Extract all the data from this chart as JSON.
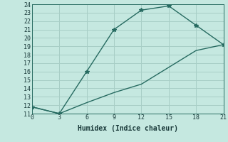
{
  "xlabel": "Humidex (Indice chaleur)",
  "ylabel": "",
  "line1_x": [
    0,
    3,
    6,
    9,
    12,
    15,
    18,
    21
  ],
  "line1_y": [
    11.8,
    11.0,
    16.0,
    21.0,
    23.3,
    23.8,
    21.5,
    19.2
  ],
  "line2_x": [
    0,
    3,
    6,
    9,
    12,
    15,
    18,
    21
  ],
  "line2_y": [
    11.8,
    11.0,
    12.3,
    13.5,
    14.5,
    16.5,
    18.5,
    19.2
  ],
  "line_color": "#276b61",
  "bg_color": "#c5e8e0",
  "plot_bg_color": "#c5e8e0",
  "grid_color": "#a8cec6",
  "xlim": [
    0,
    21
  ],
  "ylim": [
    11,
    24
  ],
  "xticks": [
    0,
    3,
    6,
    9,
    12,
    15,
    18,
    21
  ],
  "yticks": [
    11,
    12,
    13,
    14,
    15,
    16,
    17,
    18,
    19,
    20,
    21,
    22,
    23,
    24
  ],
  "marker": "*",
  "markersize": 4,
  "linewidth": 1.0,
  "xlabel_fontsize": 7,
  "tick_fontsize": 6
}
